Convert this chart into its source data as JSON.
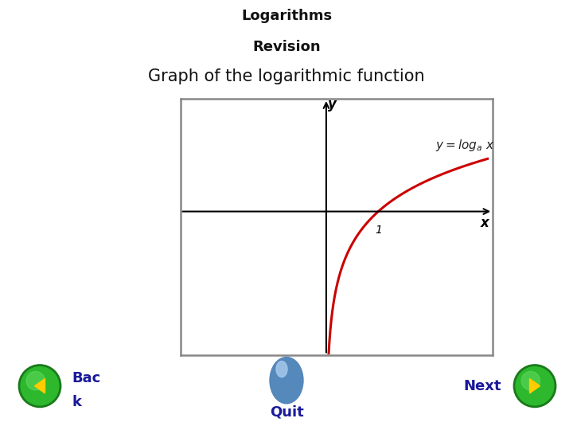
{
  "title1": "Logarithms",
  "title2": "Revision",
  "subtitle": "Graph of the logarithmic function",
  "title_bg_color": "#d4d4d4",
  "bg_color": "#ffffff",
  "curve_color": "#cc0000",
  "curve_linewidth": 2.2,
  "box_edge_color": "#888888",
  "label_x": "x",
  "label_y": "y",
  "label_1": "1",
  "nav_back": "Bac\nk",
  "nav_quit": "Quit",
  "nav_next": "Next",
  "nav_color": "#1a1a99",
  "title_fontsize": 13,
  "subtitle_fontsize": 15
}
